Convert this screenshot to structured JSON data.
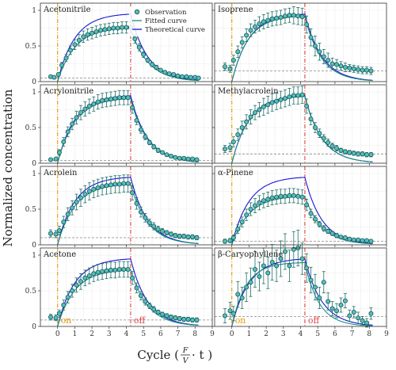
{
  "figure": {
    "ylabel": "Normalized concentration",
    "xlabel": "Cycle (",
    "xlabel_frac_num": "F",
    "xlabel_frac_den": "V",
    "xlabel_tail": " · t )",
    "on_label": "on",
    "off_label": "off"
  },
  "legend": {
    "items": [
      {
        "label": "Observation",
        "kind": "point"
      },
      {
        "label": "Fitted curve",
        "kind": "line",
        "color": "#1a8f84"
      },
      {
        "label": "Theoretical curve",
        "kind": "line",
        "color": "#1515d6"
      }
    ]
  },
  "colors": {
    "observation_fill": "#4fc3b8",
    "observation_edge": "#1f4e5a",
    "errorbar": "#1f6e66",
    "fitted": "#1a8f84",
    "theoretical": "#1515d6",
    "on_line": "#e69a00",
    "off_line": "#dd4444",
    "baseline": "#888888"
  },
  "chart_data": [
    {
      "type": "scatter",
      "title": "Acetonitrile",
      "baseline": 0.05,
      "xlim": [
        -1,
        9
      ],
      "ylim": [
        0,
        1.1
      ],
      "xticks": [
        0,
        1,
        2,
        3,
        4,
        5,
        6,
        7,
        8,
        9
      ],
      "yticks": [
        0,
        0.5,
        1
      ],
      "ytick_labels": [
        "0",
        "0.5",
        "1"
      ],
      "on_x": 0,
      "off_x": 4.25,
      "x": [
        -0.4,
        -0.2,
        0.05,
        0.25,
        0.5,
        0.75,
        1.0,
        1.25,
        1.5,
        1.75,
        2.0,
        2.25,
        2.5,
        2.75,
        3.0,
        3.25,
        3.5,
        3.75,
        4.0,
        4.25,
        4.5,
        4.75,
        5.0,
        5.25,
        5.5,
        5.75,
        6.0,
        6.25,
        6.5,
        6.75,
        7.0,
        7.25,
        7.5,
        7.75,
        8.0,
        8.2
      ],
      "y": [
        0.07,
        0.06,
        0.1,
        0.23,
        0.33,
        0.44,
        0.52,
        0.58,
        0.63,
        0.66,
        0.68,
        0.7,
        0.72,
        0.73,
        0.74,
        0.75,
        0.75,
        0.76,
        0.76,
        0.76,
        0.6,
        0.48,
        0.38,
        0.3,
        0.24,
        0.2,
        0.16,
        0.13,
        0.11,
        0.1,
        0.08,
        0.07,
        0.07,
        0.06,
        0.06,
        0.05
      ],
      "err": [
        0.02,
        0.02,
        0.02,
        0.04,
        0.05,
        0.06,
        0.07,
        0.08,
        0.08,
        0.08,
        0.08,
        0.08,
        0.08,
        0.08,
        0.08,
        0.08,
        0.08,
        0.08,
        0.08,
        0.08,
        0.06,
        0.05,
        0.04,
        0.03,
        0.03,
        0.03,
        0.02,
        0.02,
        0.02,
        0.02,
        0.02,
        0.02,
        0.02,
        0.02,
        0.02,
        0.02
      ],
      "fitted": {
        "A": 0.76,
        "k": 1.0
      },
      "theoretical": {
        "A": 0.96,
        "k": 1.0
      }
    },
    {
      "type": "scatter",
      "title": "Isoprene",
      "baseline": 0.15,
      "xlim": [
        -1,
        9
      ],
      "ylim": [
        0,
        1.1
      ],
      "xticks": [
        0,
        1,
        2,
        3,
        4,
        5,
        6,
        7,
        8,
        9
      ],
      "yticks": [
        0,
        0.5,
        1
      ],
      "ytick_labels": [
        "0",
        "0.5",
        "1"
      ],
      "on_x": 0,
      "off_x": 4.25,
      "x": [
        -0.4,
        -0.1,
        0.1,
        0.35,
        0.6,
        0.85,
        1.1,
        1.35,
        1.6,
        1.85,
        2.1,
        2.35,
        2.6,
        2.85,
        3.1,
        3.35,
        3.6,
        3.85,
        4.1,
        4.35,
        4.6,
        4.85,
        5.1,
        5.35,
        5.6,
        5.85,
        6.1,
        6.35,
        6.6,
        6.85,
        7.1,
        7.35,
        7.6,
        7.85,
        8.1
      ],
      "y": [
        0.21,
        0.18,
        0.3,
        0.42,
        0.55,
        0.65,
        0.72,
        0.77,
        0.81,
        0.84,
        0.86,
        0.88,
        0.89,
        0.9,
        0.92,
        0.93,
        0.93,
        0.92,
        0.91,
        0.8,
        0.62,
        0.5,
        0.42,
        0.35,
        0.3,
        0.25,
        0.24,
        0.22,
        0.2,
        0.19,
        0.18,
        0.17,
        0.16,
        0.16,
        0.15
      ],
      "err": [
        0.05,
        0.05,
        0.07,
        0.08,
        0.08,
        0.09,
        0.09,
        0.09,
        0.1,
        0.1,
        0.1,
        0.1,
        0.1,
        0.1,
        0.1,
        0.1,
        0.12,
        0.12,
        0.12,
        0.12,
        0.12,
        0.14,
        0.12,
        0.1,
        0.1,
        0.08,
        0.07,
        0.06,
        0.06,
        0.05,
        0.05,
        0.05,
        0.05,
        0.05,
        0.05
      ],
      "fitted": {
        "A": 0.93,
        "k": 1.05
      },
      "theoretical": {
        "A": 0.96,
        "k": 1.0
      }
    },
    {
      "type": "scatter",
      "title": "Acrylonitrile",
      "baseline": 0.04,
      "xlim": [
        -1,
        9
      ],
      "ylim": [
        0,
        1.1
      ],
      "xticks": [
        0,
        1,
        2,
        3,
        4,
        5,
        6,
        7,
        8,
        9
      ],
      "yticks": [
        0,
        0.5,
        1
      ],
      "ytick_labels": [
        "0",
        "0.5",
        "1"
      ],
      "on_x": 0,
      "off_x": 4.25,
      "x": [
        -0.4,
        -0.1,
        0.1,
        0.35,
        0.6,
        0.85,
        1.1,
        1.35,
        1.6,
        1.85,
        2.1,
        2.35,
        2.6,
        2.85,
        3.1,
        3.35,
        3.6,
        3.85,
        4.1,
        4.35,
        4.6,
        4.85,
        5.1,
        5.35,
        5.6,
        5.85,
        6.1,
        6.35,
        6.6,
        6.85,
        7.1,
        7.35,
        7.6,
        7.85,
        8.1
      ],
      "y": [
        0.05,
        0.06,
        0.15,
        0.3,
        0.44,
        0.55,
        0.64,
        0.71,
        0.76,
        0.8,
        0.83,
        0.86,
        0.88,
        0.89,
        0.9,
        0.91,
        0.92,
        0.92,
        0.92,
        0.78,
        0.6,
        0.47,
        0.37,
        0.29,
        0.23,
        0.18,
        0.15,
        0.12,
        0.1,
        0.08,
        0.07,
        0.07,
        0.06,
        0.06,
        0.05
      ],
      "err": [
        0.02,
        0.02,
        0.04,
        0.06,
        0.07,
        0.08,
        0.09,
        0.1,
        0.1,
        0.1,
        0.1,
        0.1,
        0.1,
        0.1,
        0.1,
        0.1,
        0.1,
        0.1,
        0.1,
        0.08,
        0.06,
        0.05,
        0.04,
        0.03,
        0.03,
        0.03,
        0.02,
        0.02,
        0.02,
        0.02,
        0.02,
        0.02,
        0.02,
        0.02,
        0.02
      ],
      "fitted": {
        "A": 0.92,
        "k": 1.0
      },
      "theoretical": {
        "A": 0.96,
        "k": 1.0
      }
    },
    {
      "type": "scatter",
      "title": "Methylacrolein",
      "baseline": 0.13,
      "xlim": [
        -1,
        9
      ],
      "ylim": [
        0,
        1.1
      ],
      "xticks": [
        0,
        1,
        2,
        3,
        4,
        5,
        6,
        7,
        8,
        9
      ],
      "yticks": [
        0,
        0.5,
        1
      ],
      "ytick_labels": [
        "0",
        "0.5",
        "1"
      ],
      "on_x": 0,
      "off_x": 4.25,
      "x": [
        -0.4,
        -0.1,
        0.1,
        0.35,
        0.6,
        0.85,
        1.1,
        1.35,
        1.6,
        1.85,
        2.1,
        2.35,
        2.6,
        2.85,
        3.1,
        3.35,
        3.6,
        3.85,
        4.1,
        4.35,
        4.6,
        4.85,
        5.1,
        5.35,
        5.6,
        5.85,
        6.1,
        6.35,
        6.6,
        6.85,
        7.1,
        7.35,
        7.6,
        7.85,
        8.1
      ],
      "y": [
        0.2,
        0.22,
        0.3,
        0.4,
        0.5,
        0.58,
        0.65,
        0.71,
        0.75,
        0.79,
        0.82,
        0.85,
        0.87,
        0.89,
        0.91,
        0.93,
        0.95,
        0.95,
        0.96,
        0.8,
        0.62,
        0.5,
        0.42,
        0.35,
        0.29,
        0.24,
        0.21,
        0.18,
        0.16,
        0.15,
        0.14,
        0.13,
        0.13,
        0.12,
        0.12
      ],
      "err": [
        0.05,
        0.06,
        0.07,
        0.08,
        0.09,
        0.1,
        0.1,
        0.1,
        0.1,
        0.12,
        0.12,
        0.12,
        0.12,
        0.12,
        0.12,
        0.12,
        0.12,
        0.12,
        0.12,
        0.1,
        0.08,
        0.07,
        0.06,
        0.05,
        0.05,
        0.04,
        0.04,
        0.03,
        0.03,
        0.03,
        0.03,
        0.03,
        0.03,
        0.03,
        0.03
      ],
      "fitted": {
        "A": 0.95,
        "k": 1.0
      },
      "theoretical": {
        "A": 0.96,
        "k": 1.0
      }
    },
    {
      "type": "scatter",
      "title": "Acrolein",
      "baseline": 0.1,
      "xlim": [
        -1,
        9
      ],
      "ylim": [
        0,
        1.1
      ],
      "xticks": [
        0,
        1,
        2,
        3,
        4,
        5,
        6,
        7,
        8,
        9
      ],
      "yticks": [
        0,
        0.5,
        1
      ],
      "ytick_labels": [
        "0",
        "0.5",
        "1"
      ],
      "on_x": 0,
      "off_x": 4.25,
      "x": [
        -0.4,
        -0.1,
        0.1,
        0.35,
        0.6,
        0.85,
        1.1,
        1.35,
        1.6,
        1.85,
        2.1,
        2.35,
        2.6,
        2.85,
        3.1,
        3.35,
        3.6,
        3.85,
        4.1,
        4.35,
        4.6,
        4.85,
        5.1,
        5.35,
        5.6,
        5.85,
        6.1,
        6.35,
        6.6,
        6.85,
        7.1,
        7.35,
        7.6,
        7.85,
        8.1
      ],
      "y": [
        0.16,
        0.15,
        0.2,
        0.32,
        0.43,
        0.52,
        0.6,
        0.66,
        0.71,
        0.75,
        0.78,
        0.8,
        0.82,
        0.83,
        0.84,
        0.85,
        0.85,
        0.86,
        0.86,
        0.73,
        0.58,
        0.46,
        0.38,
        0.31,
        0.26,
        0.22,
        0.19,
        0.17,
        0.15,
        0.13,
        0.12,
        0.12,
        0.11,
        0.11,
        0.1
      ],
      "err": [
        0.05,
        0.05,
        0.06,
        0.08,
        0.09,
        0.1,
        0.11,
        0.12,
        0.12,
        0.12,
        0.12,
        0.12,
        0.12,
        0.12,
        0.12,
        0.12,
        0.12,
        0.12,
        0.12,
        0.1,
        0.08,
        0.07,
        0.06,
        0.05,
        0.05,
        0.04,
        0.04,
        0.03,
        0.03,
        0.03,
        0.03,
        0.03,
        0.03,
        0.03,
        0.03
      ],
      "fitted": {
        "A": 0.86,
        "k": 1.0
      },
      "theoretical": {
        "A": 0.96,
        "k": 1.0
      }
    },
    {
      "type": "scatter",
      "title": "α-Pinene",
      "baseline": 0.05,
      "xlim": [
        -1,
        9
      ],
      "ylim": [
        0,
        1.1
      ],
      "xticks": [
        0,
        1,
        2,
        3,
        4,
        5,
        6,
        7,
        8,
        9
      ],
      "yticks": [
        0,
        0.5,
        1
      ],
      "ytick_labels": [
        "0",
        "0.5",
        "1"
      ],
      "on_x": 0,
      "off_x": 4.25,
      "x": [
        -0.4,
        -0.1,
        0.1,
        0.35,
        0.6,
        0.85,
        1.1,
        1.35,
        1.6,
        1.85,
        2.1,
        2.35,
        2.6,
        2.85,
        3.1,
        3.35,
        3.6,
        3.85,
        4.1,
        4.35,
        4.6,
        4.85,
        5.1,
        5.35,
        5.6,
        5.85,
        6.1,
        6.35,
        6.6,
        6.85,
        7.1,
        7.35,
        7.6,
        7.85,
        8.1
      ],
      "y": [
        0.05,
        0.06,
        0.1,
        0.22,
        0.32,
        0.42,
        0.5,
        0.55,
        0.59,
        0.62,
        0.64,
        0.66,
        0.67,
        0.68,
        0.68,
        0.69,
        0.69,
        0.68,
        0.67,
        0.56,
        0.44,
        0.36,
        0.29,
        0.23,
        0.19,
        0.16,
        0.13,
        0.11,
        0.1,
        0.08,
        0.07,
        0.07,
        0.06,
        0.06,
        0.05
      ],
      "err": [
        0.03,
        0.03,
        0.04,
        0.06,
        0.07,
        0.08,
        0.09,
        0.1,
        0.1,
        0.1,
        0.1,
        0.1,
        0.1,
        0.1,
        0.1,
        0.1,
        0.1,
        0.1,
        0.1,
        0.08,
        0.06,
        0.05,
        0.04,
        0.04,
        0.03,
        0.03,
        0.03,
        0.02,
        0.02,
        0.02,
        0.02,
        0.02,
        0.02,
        0.02,
        0.02
      ],
      "fitted": {
        "A": 0.69,
        "k": 1.0
      },
      "theoretical": {
        "A": 0.96,
        "k": 1.0
      }
    },
    {
      "type": "scatter",
      "title": "Acetone",
      "baseline": 0.09,
      "xlim": [
        -1,
        9
      ],
      "ylim": [
        0,
        1.1
      ],
      "xticks": [
        0,
        1,
        2,
        3,
        4,
        5,
        6,
        7,
        8,
        9
      ],
      "yticks": [
        0,
        0.5,
        1
      ],
      "ytick_labels": [
        "0",
        "0.5",
        "1"
      ],
      "on_x": 0,
      "off_x": 4.25,
      "x": [
        -0.4,
        -0.1,
        0.1,
        0.35,
        0.6,
        0.85,
        1.1,
        1.35,
        1.6,
        1.85,
        2.1,
        2.35,
        2.6,
        2.85,
        3.1,
        3.35,
        3.6,
        3.85,
        4.1,
        4.35,
        4.6,
        4.85,
        5.1,
        5.35,
        5.6,
        5.85,
        6.1,
        6.35,
        6.6,
        6.85,
        7.1,
        7.35,
        7.6,
        7.85,
        8.1
      ],
      "y": [
        0.13,
        0.12,
        0.18,
        0.3,
        0.41,
        0.5,
        0.58,
        0.63,
        0.68,
        0.71,
        0.74,
        0.76,
        0.77,
        0.78,
        0.79,
        0.79,
        0.8,
        0.8,
        0.8,
        0.68,
        0.54,
        0.43,
        0.35,
        0.29,
        0.24,
        0.2,
        0.17,
        0.15,
        0.13,
        0.12,
        0.11,
        0.1,
        0.1,
        0.09,
        0.09
      ],
      "err": [
        0.04,
        0.04,
        0.05,
        0.07,
        0.08,
        0.09,
        0.1,
        0.11,
        0.11,
        0.11,
        0.11,
        0.11,
        0.11,
        0.11,
        0.11,
        0.11,
        0.11,
        0.11,
        0.11,
        0.09,
        0.07,
        0.06,
        0.05,
        0.04,
        0.04,
        0.03,
        0.03,
        0.03,
        0.03,
        0.03,
        0.03,
        0.03,
        0.03,
        0.03,
        0.03
      ],
      "fitted": {
        "A": 0.8,
        "k": 1.0
      },
      "theoretical": {
        "A": 0.96,
        "k": 1.0
      }
    },
    {
      "type": "scatter",
      "title": "β-Caryophyllene",
      "baseline": 0.14,
      "xlim": [
        -1,
        9
      ],
      "ylim": [
        0,
        1.1
      ],
      "xticks": [
        0,
        1,
        2,
        3,
        4,
        5,
        6,
        7,
        8,
        9
      ],
      "yticks": [
        0,
        0.5,
        1
      ],
      "ytick_labels": [
        "0",
        "0.5",
        "1"
      ],
      "on_x": 0,
      "off_x": 4.25,
      "x": [
        -0.4,
        -0.1,
        0.1,
        0.35,
        0.6,
        0.85,
        1.1,
        1.35,
        1.6,
        1.85,
        2.1,
        2.35,
        2.6,
        2.85,
        3.1,
        3.35,
        3.6,
        3.85,
        4.1,
        4.35,
        4.6,
        4.85,
        5.1,
        5.35,
        5.6,
        5.85,
        6.1,
        6.35,
        6.6,
        6.85,
        7.1,
        7.35,
        7.6,
        7.85,
        8.1
      ],
      "y": [
        0.15,
        0.22,
        0.18,
        0.45,
        0.4,
        0.55,
        0.62,
        0.8,
        0.7,
        0.85,
        0.75,
        0.9,
        0.85,
        0.95,
        1.05,
        0.85,
        1.08,
        1.1,
        0.95,
        0.82,
        0.65,
        0.55,
        0.4,
        0.62,
        0.35,
        0.25,
        0.22,
        0.3,
        0.36,
        0.15,
        0.2,
        0.12,
        0.08,
        0.05,
        0.18
      ],
      "err": [
        0.1,
        0.12,
        0.1,
        0.18,
        0.15,
        0.2,
        0.2,
        0.25,
        0.2,
        0.25,
        0.22,
        0.25,
        0.22,
        0.25,
        0.25,
        0.22,
        0.25,
        0.25,
        0.22,
        0.2,
        0.18,
        0.18,
        0.15,
        0.15,
        0.12,
        0.1,
        0.1,
        0.1,
        0.1,
        0.08,
        0.08,
        0.08,
        0.06,
        0.06,
        0.08
      ],
      "fitted": {
        "A": 0.9,
        "k": 1.2
      },
      "theoretical": {
        "A": 0.96,
        "k": 1.0
      }
    }
  ]
}
